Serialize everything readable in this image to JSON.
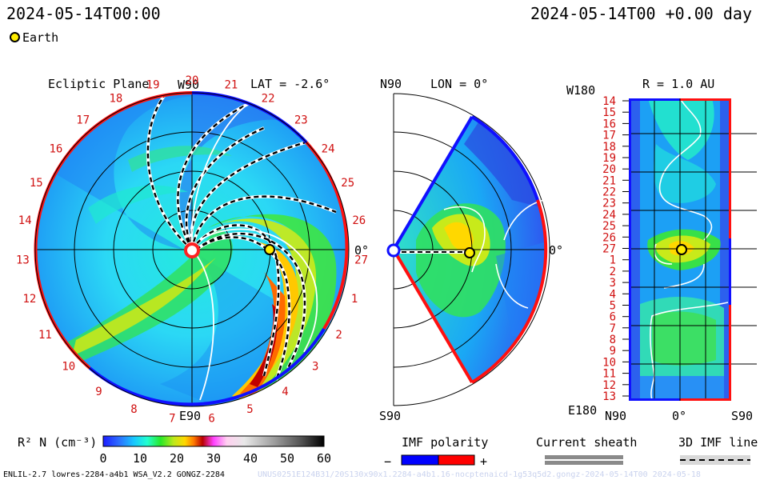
{
  "header": {
    "datetime": "2024-05-14T00:00",
    "right_time": "2024-05-14T00 +0.00 day"
  },
  "legend": {
    "earth_label": "Earth",
    "earth_color": "#ffee00"
  },
  "panels": {
    "ecliptic": {
      "title": "Ecliptic Plane",
      "top_label": "W90",
      "bottom_label": "E90",
      "lat_label": "LAT = -2.6°",
      "right_label": "0°",
      "carrington": [
        "20",
        "21",
        "22",
        "23",
        "24",
        "25",
        "26",
        "27",
        "1",
        "2",
        "3",
        "4",
        "5",
        "6",
        "7",
        "8",
        "9",
        "10",
        "11",
        "12",
        "13",
        "14",
        "15",
        "16",
        "17",
        "18",
        "19"
      ]
    },
    "meridional": {
      "top_label": "N90",
      "bottom_label": "S90",
      "lon_label": "LON = 0°",
      "right_label": "0°"
    },
    "latlon": {
      "top_left": "W180",
      "r_label": "R = 1.0 AU",
      "bottom_left": "E180",
      "x_labels": [
        "N90",
        "0°",
        "S90"
      ],
      "y_labels": [
        "14",
        "15",
        "16",
        "17",
        "18",
        "19",
        "20",
        "21",
        "22",
        "23",
        "24",
        "25",
        "26",
        "27",
        "1",
        "2",
        "3",
        "4",
        "5",
        "6",
        "7",
        "8",
        "9",
        "10",
        "11",
        "12",
        "13"
      ]
    }
  },
  "colorbar": {
    "label": "R² N (cm⁻³)",
    "ticks": [
      "0",
      "10",
      "20",
      "30",
      "40",
      "50",
      "60"
    ],
    "colors": [
      "#1c1cff",
      "#2c6cff",
      "#18c8ff",
      "#22ffd0",
      "#28e828",
      "#bfe81a",
      "#ffd800",
      "#ff7a00",
      "#b80000",
      "#ff40ff",
      "#ffd0f0",
      "#e0e0e0",
      "#9a9a9a",
      "#505050",
      "#000000"
    ]
  },
  "imf": {
    "title": "IMF polarity",
    "minus": "−",
    "plus": "+",
    "neg_color": "#0000ff",
    "pos_color": "#ff0000"
  },
  "sheath": {
    "title": "Current sheath"
  },
  "imf_line": {
    "title": "3D IMF line"
  },
  "footer": {
    "model": "ENLIL-2.7 lowres-2284-a4b1 WSA_V2.2 GONGZ-2284",
    "run_id": "UNUS0251E124B31/20S130x90x1.2284-a4b1.16-nocptenaicd-1g53q5d2.gongz-2024-05-14T00 2024-05-18"
  }
}
